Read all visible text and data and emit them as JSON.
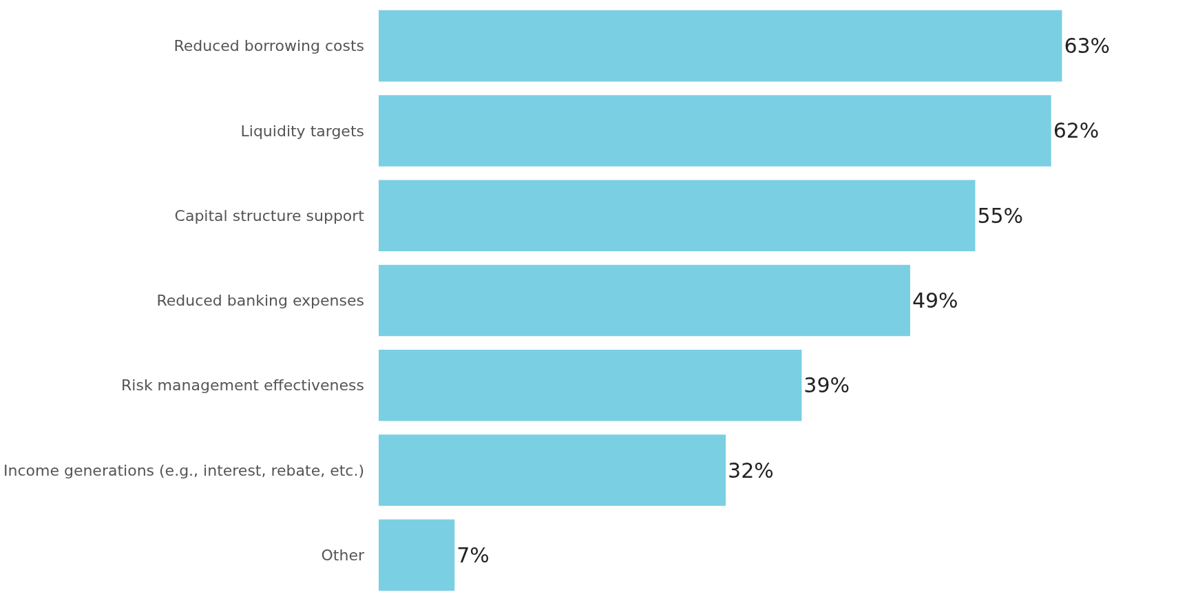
{
  "chart_data": {
    "type": "bar",
    "orientation": "horizontal",
    "categories": [
      "Reduced borrowing costs",
      "Liquidity targets",
      "Capital structure support",
      "Reduced banking expenses",
      "Risk management effectiveness",
      "Income generations (e.g., interest, rebate, etc.)",
      "Other"
    ],
    "values": [
      63,
      62,
      55,
      49,
      39,
      32,
      7
    ],
    "value_labels": [
      "63%",
      "62%",
      "55%",
      "49%",
      "39%",
      "32%",
      "7%"
    ],
    "color": "#7acfe3",
    "legend": false
  }
}
